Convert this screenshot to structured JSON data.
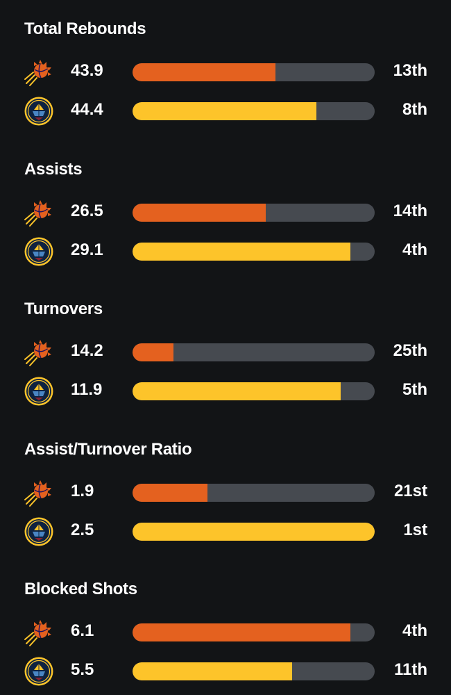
{
  "colors": {
    "background": "#121416",
    "suns": "#e4611f",
    "nuggets": "#fdc42a",
    "track": "#464a50"
  },
  "teams": [
    "suns-logo",
    "nuggets-logo"
  ],
  "stats": [
    {
      "title": "Total Rebounds",
      "rows": [
        {
          "team": "suns",
          "value": "43.9",
          "rank": "13th",
          "fill_pct": 59
        },
        {
          "team": "nuggets",
          "value": "44.4",
          "rank": "8th",
          "fill_pct": 76
        }
      ]
    },
    {
      "title": "Assists",
      "rows": [
        {
          "team": "suns",
          "value": "26.5",
          "rank": "14th",
          "fill_pct": 55
        },
        {
          "team": "nuggets",
          "value": "29.1",
          "rank": "4th",
          "fill_pct": 90
        }
      ]
    },
    {
      "title": "Turnovers",
      "rows": [
        {
          "team": "suns",
          "value": "14.2",
          "rank": "25th",
          "fill_pct": 17
        },
        {
          "team": "nuggets",
          "value": "11.9",
          "rank": "5th",
          "fill_pct": 86
        }
      ]
    },
    {
      "title": "Assist/Turnover Ratio",
      "rows": [
        {
          "team": "suns",
          "value": "1.9",
          "rank": "21st",
          "fill_pct": 31
        },
        {
          "team": "nuggets",
          "value": "2.5",
          "rank": "1st",
          "fill_pct": 100
        }
      ]
    },
    {
      "title": "Blocked Shots",
      "rows": [
        {
          "team": "suns",
          "value": "6.1",
          "rank": "4th",
          "fill_pct": 90
        },
        {
          "team": "nuggets",
          "value": "5.5",
          "rank": "11th",
          "fill_pct": 66
        }
      ]
    }
  ]
}
